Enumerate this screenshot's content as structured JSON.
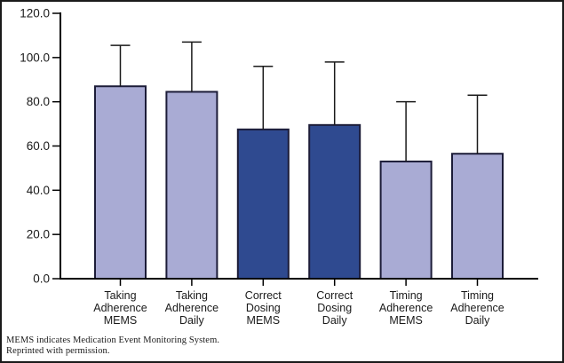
{
  "figure": {
    "background": "#ffffff",
    "border_color": "#1a1a1a"
  },
  "chart_data": {
    "type": "bar",
    "title": "",
    "xlabel": "",
    "ylabel": "",
    "grid": false,
    "legend": "none",
    "ylim": [
      0,
      120
    ],
    "yticks": [
      0,
      20,
      40,
      60,
      80,
      100,
      120
    ],
    "ytick_labels": [
      "0.0",
      "20.0",
      "40.0",
      "60.0",
      "80.0",
      "100.0",
      "120.0"
    ],
    "categories": [
      "Taking Adherence MEMS",
      "Taking Adherence Daily",
      "Correct Dosing MEMS",
      "Correct Dosing Daily",
      "Timing Adherence MEMS",
      "Timing Adherence Daily"
    ],
    "category_lines": [
      [
        "Taking",
        "Adherence",
        "MEMS"
      ],
      [
        "Taking",
        "Adherence",
        "Daily"
      ],
      [
        "Correct",
        "Dosing",
        "MEMS"
      ],
      [
        "Correct",
        "Dosing",
        "Daily"
      ],
      [
        "Timing",
        "Adherence",
        "MEMS"
      ],
      [
        "Timing",
        "Adherence",
        "Daily"
      ]
    ],
    "values": [
      87.0,
      84.5,
      67.5,
      69.5,
      53.0,
      56.5
    ],
    "error_top": [
      105.5,
      107.0,
      96.0,
      98.0,
      80.0,
      83.0
    ],
    "bar_color_keys": [
      "light",
      "light",
      "dark",
      "dark",
      "light",
      "light"
    ],
    "colors": {
      "light": "#a9abd4",
      "dark": "#2f4a90",
      "outline": "#1c1c38",
      "error": "#1a1a1a",
      "axis": "#000000",
      "text": "#1a1a1a"
    }
  },
  "footer": {
    "line1": "MEMS indicates Medication Event Monitoring System.",
    "line2": "Reprinted with permission."
  }
}
